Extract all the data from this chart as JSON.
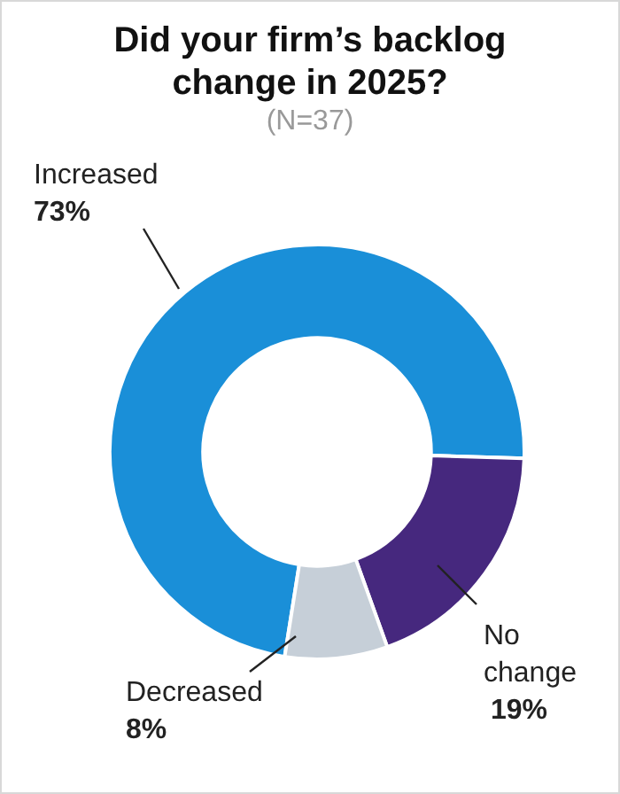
{
  "chart_data": {
    "type": "donut",
    "title": "Did your firm’s backlog change in 2025?",
    "subtitle": "(N=37)",
    "categories": [
      "Increased",
      "No change",
      "Decreased"
    ],
    "values": [
      73,
      19,
      8
    ],
    "value_labels": [
      "73%",
      "19%",
      "8%"
    ],
    "colors": [
      "#1a8fd8",
      "#46287e",
      "#c6cfd8"
    ],
    "legend": false
  }
}
